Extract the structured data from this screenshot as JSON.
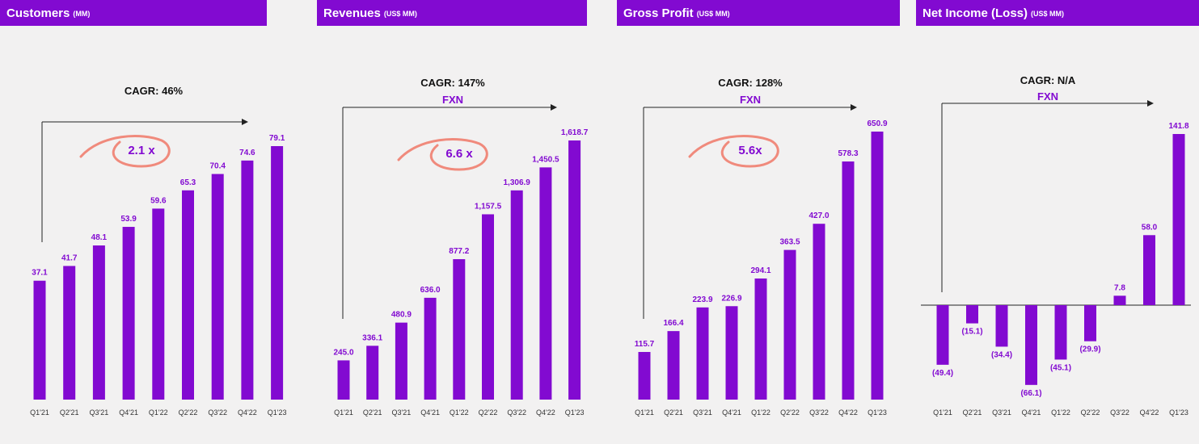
{
  "colors": {
    "bar": "#820ad1",
    "header_bg": "#820ad1",
    "header_text": "#ffffff",
    "arrow": "#222222",
    "highlight_circle": "#f08a7c"
  },
  "chart_data": [
    {
      "type": "bar",
      "title": "Customers",
      "unit": "(MM)",
      "cagr": "CAGR: 46%",
      "cagr_note": "",
      "multiplier": "2.1 x",
      "categories": [
        "Q1'21",
        "Q2'21",
        "Q3'21",
        "Q4'21",
        "Q1'22",
        "Q2'22",
        "Q3'22",
        "Q4'22",
        "Q1'23"
      ],
      "values": [
        37.1,
        41.7,
        48.1,
        53.9,
        59.6,
        65.3,
        70.4,
        74.6,
        79.1
      ],
      "labels": [
        "37.1",
        "41.7",
        "48.1",
        "53.9",
        "59.6",
        "65.3",
        "70.4",
        "74.6",
        "79.1"
      ],
      "ylim": [
        0,
        79.1
      ]
    },
    {
      "type": "bar",
      "title": "Revenues",
      "unit": "(US$ MM)",
      "cagr": "CAGR: 147%",
      "cagr_note": "FXN",
      "multiplier": "6.6 x",
      "categories": [
        "Q1'21",
        "Q2'21",
        "Q3'21",
        "Q4'21",
        "Q1'22",
        "Q2'22",
        "Q3'22",
        "Q4'22",
        "Q1'23"
      ],
      "values": [
        245.0,
        336.1,
        480.9,
        636.0,
        877.2,
        1157.5,
        1306.9,
        1450.5,
        1618.7
      ],
      "labels": [
        "245.0",
        "336.1",
        "480.9",
        "636.0",
        "877.2",
        "1,157.5",
        "1,306.9",
        "1,450.5",
        "1,618.7"
      ],
      "ylim": [
        0,
        1618.7
      ]
    },
    {
      "type": "bar",
      "title": "Gross Profit",
      "unit": "(US$ MM)",
      "cagr": "CAGR: 128%",
      "cagr_note": "FXN",
      "multiplier": "5.6x",
      "categories": [
        "Q1'21",
        "Q2'21",
        "Q3'21",
        "Q4'21",
        "Q1'22",
        "Q2'22",
        "Q3'22",
        "Q4'22",
        "Q1'23"
      ],
      "values": [
        115.7,
        166.4,
        223.9,
        226.9,
        294.1,
        363.5,
        427.0,
        578.3,
        650.9
      ],
      "labels": [
        "115.7",
        "166.4",
        "223.9",
        "226.9",
        "294.1",
        "363.5",
        "427.0",
        "578.3",
        "650.9"
      ],
      "ylim": [
        0,
        650.9
      ]
    },
    {
      "type": "bar",
      "title": "Net Income (Loss)",
      "unit": "(US$ MM)",
      "cagr": "CAGR: N/A",
      "cagr_note": "FXN",
      "multiplier": "",
      "categories": [
        "Q1'21",
        "Q2'21",
        "Q3'21",
        "Q4'21",
        "Q1'22",
        "Q2'22",
        "Q3'22",
        "Q4'22",
        "Q1'23"
      ],
      "values": [
        -49.4,
        -15.1,
        -34.4,
        -66.1,
        -45.1,
        -29.9,
        7.8,
        58.0,
        141.8
      ],
      "labels": [
        "(49.4)",
        "(15.1)",
        "(34.4)",
        "(66.1)",
        "(45.1)",
        "(29.9)",
        "7.8",
        "58.0",
        "141.8"
      ],
      "ylim": [
        -66.1,
        141.8
      ]
    }
  ]
}
